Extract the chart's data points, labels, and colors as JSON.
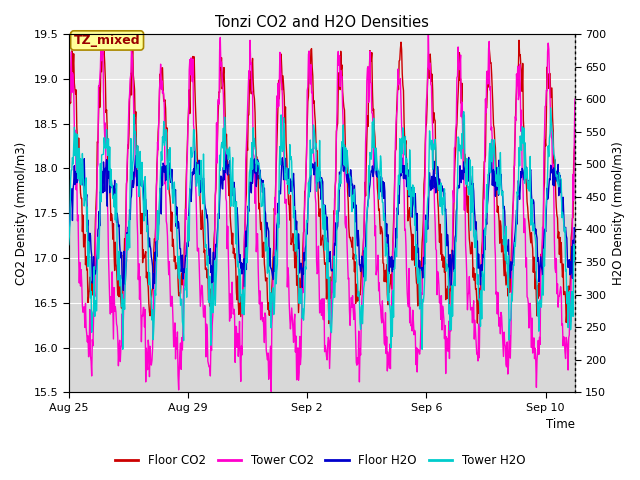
{
  "title": "Tonzi CO2 and H2O Densities",
  "xlabel": "Time",
  "ylabel_left": "CO2 Density (mmol/m3)",
  "ylabel_right": "H2O Density (mmol/m3)",
  "ylim_left": [
    15.5,
    19.5
  ],
  "ylim_right": [
    150,
    700
  ],
  "yticks_left": [
    15.5,
    16.0,
    16.5,
    17.0,
    17.5,
    18.0,
    18.5,
    19.0,
    19.5
  ],
  "yticks_right": [
    150,
    200,
    250,
    300,
    350,
    400,
    450,
    500,
    550,
    600,
    650,
    700
  ],
  "xtick_labels": [
    "Aug 25",
    "Aug 29",
    "Sep 2",
    "Sep 6",
    "Sep 10"
  ],
  "n_days": 17,
  "period": 1.0,
  "color_floor_co2": "#cc0000",
  "color_tower_co2": "#ff00cc",
  "color_floor_h2o": "#0000cc",
  "color_tower_h2o": "#00cccc",
  "linewidth": 1.0,
  "bg_color_outer": "#d8d8d8",
  "bg_color_inner": "#e8e8e8",
  "label_box_color": "#ffff99",
  "label_box_edgecolor": "#aa8800",
  "label_text": "TZ_mixed",
  "label_text_color": "#990000",
  "legend_labels": [
    "Floor CO2",
    "Tower CO2",
    "Floor H2O",
    "Tower H2O"
  ]
}
